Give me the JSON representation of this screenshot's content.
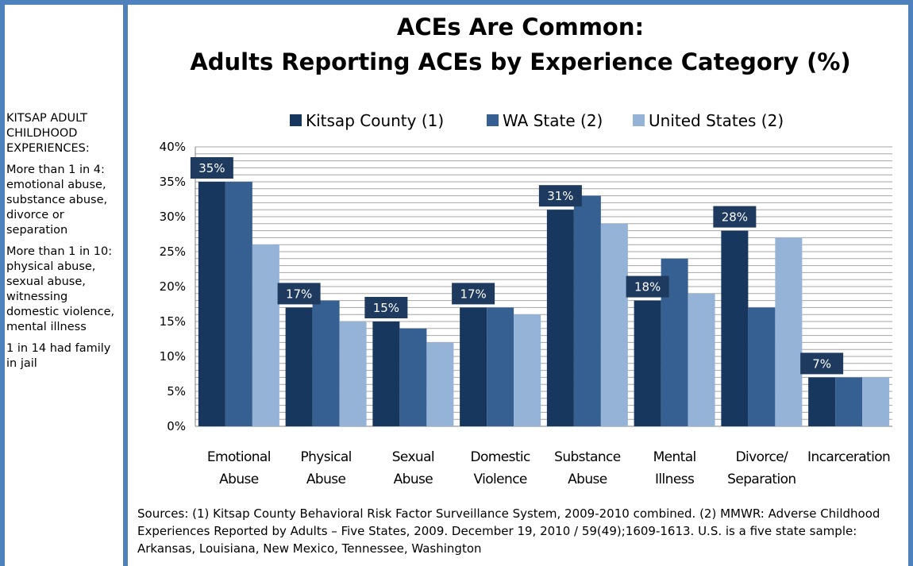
{
  "colors": {
    "frame": "#4f81bd",
    "kitsap": "#17375e",
    "wa": "#376092",
    "us": "#95b3d7",
    "label_bg": "#1f3a5f",
    "grid": "#a6a6a6"
  },
  "sidebar": {
    "heading": "KITSAP ADULT CHILDHOOD EXPERIENCES:",
    "para1": "More than 1 in 4: emotional abuse, substance abuse, divorce or separation",
    "para2": "More than 1 in 10: physical abuse, sexual abuse, witnessing domestic violence, mental illness",
    "para3": "1 in 14 had family in jail"
  },
  "sources": "Sources: (1) Kitsap County Behavioral Risk Factor Surveillance System, 2009-2010 combined. (2) MMWR: Adverse Childhood Experiences Reported by Adults – Five States, 2009. December 19, 2010 / 59(49);1609-1613. U.S. is a five state sample: Arkansas, Louisiana, New Mexico, Tennessee, Washington",
  "chart_data": {
    "type": "bar",
    "title": "ACEs Are Common:",
    "subtitle": "Adults Reporting ACEs by Experience Category (%)",
    "categories": [
      [
        "Emotional",
        "Abuse"
      ],
      [
        "Physical",
        "Abuse"
      ],
      [
        "Sexual",
        "Abuse"
      ],
      [
        "Domestic",
        "Violence"
      ],
      [
        "Substance",
        "Abuse"
      ],
      [
        "Mental",
        "Illness"
      ],
      [
        "Divorce/",
        "Separation"
      ],
      [
        "Incarceration"
      ]
    ],
    "series": [
      {
        "name": "Kitsap County (1)",
        "values": [
          35,
          17,
          15,
          17,
          31,
          18,
          28,
          7
        ]
      },
      {
        "name": "WA State (2)",
        "values": [
          35,
          18,
          14,
          17,
          33,
          24,
          17,
          7
        ]
      },
      {
        "name": "United States (2)",
        "values": [
          26,
          15,
          12,
          16,
          29,
          19,
          27,
          7
        ]
      }
    ],
    "data_labels": [
      "35%",
      "17%",
      "15%",
      "17%",
      "31%",
      "18%",
      "28%",
      "7%"
    ],
    "y_ticks": [
      "0%",
      "5%",
      "10%",
      "15%",
      "20%",
      "25%",
      "30%",
      "35%",
      "40%"
    ],
    "ylim": [
      0,
      40
    ],
    "grid": true,
    "legend_position": "top"
  }
}
